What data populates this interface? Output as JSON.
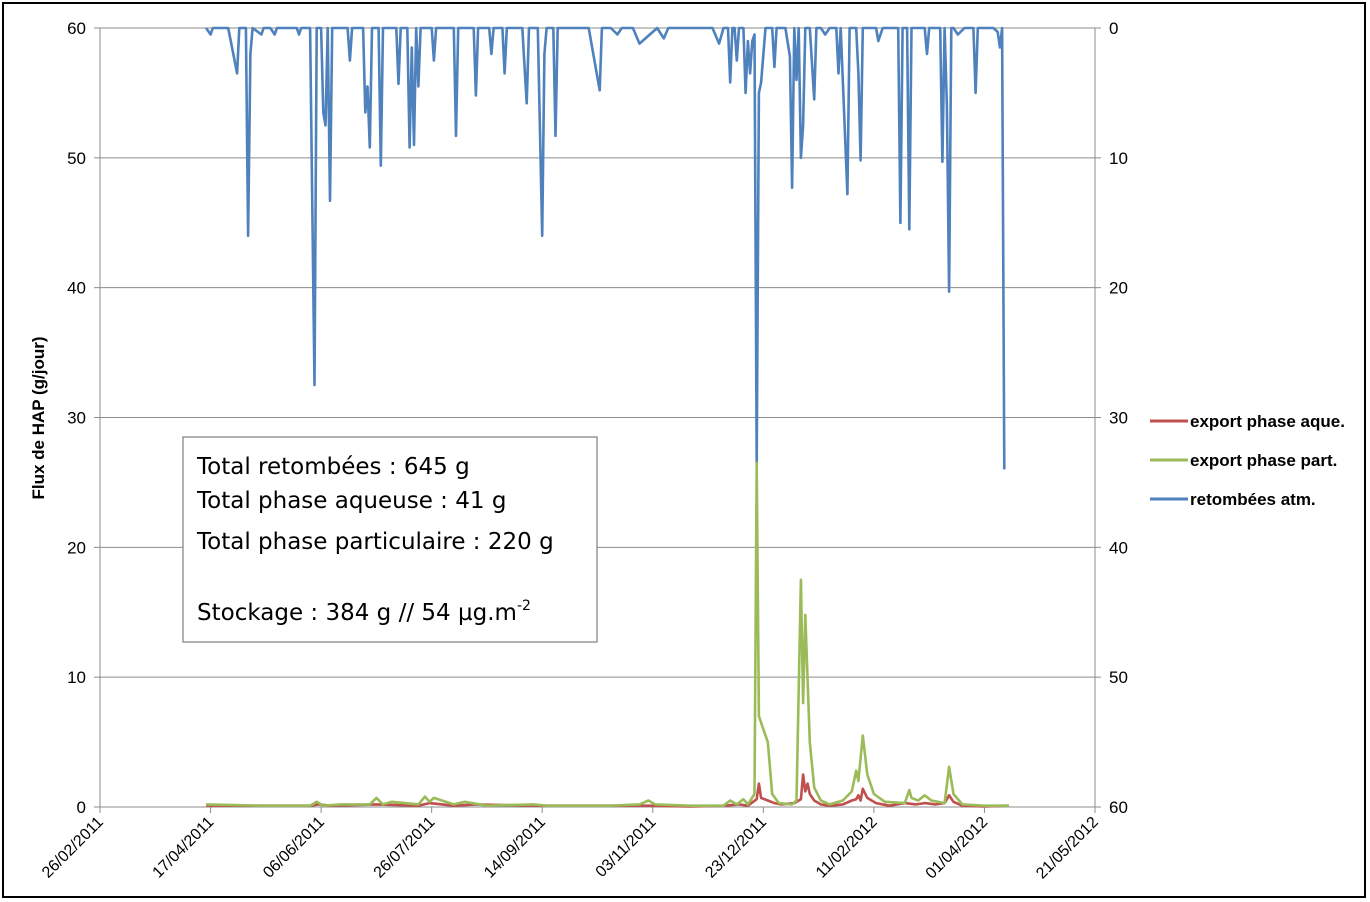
{
  "chart_data": {
    "type": "line",
    "ylabel": "Flux de HAP (g/jour)",
    "xlabel": "",
    "title": "",
    "ylim": [
      0,
      60
    ],
    "y2lim": [
      60,
      0
    ],
    "y_ticks": [
      "0",
      "10",
      "20",
      "30",
      "40",
      "50",
      "60"
    ],
    "y2_ticks": [
      "60",
      "50",
      "40",
      "30",
      "20",
      "10",
      "0"
    ],
    "x_ticks": [
      "26/02/2011",
      "17/04/2011",
      "06/06/2011",
      "26/07/2011",
      "14/09/2011",
      "03/11/2011",
      "23/12/2011",
      "11/02/2012",
      "01/04/2012",
      "21/05/2012"
    ],
    "grid": "horizontal",
    "legend_position": "right",
    "series": [
      {
        "name": "export phase aque.",
        "color": "#c0504d",
        "axis": "left",
        "points": [
          [
            "2011-04-15",
            0.1
          ],
          [
            "2011-05-10",
            0.1
          ],
          [
            "2011-06-01",
            0.1
          ],
          [
            "2011-06-05",
            0.2
          ],
          [
            "2011-06-10",
            0.1
          ],
          [
            "2011-07-01",
            0.2
          ],
          [
            "2011-07-20",
            0.1
          ],
          [
            "2011-07-25",
            0.3
          ],
          [
            "2011-08-05",
            0.1
          ],
          [
            "2011-08-15",
            0.2
          ],
          [
            "2011-09-10",
            0.1
          ],
          [
            "2011-10-15",
            0.1
          ],
          [
            "2011-11-01",
            0.1
          ],
          [
            "2011-11-20",
            0.05
          ],
          [
            "2011-12-05",
            0.1
          ],
          [
            "2011-12-12",
            0.2
          ],
          [
            "2011-12-16",
            0.1
          ],
          [
            "2011-12-20",
            0.6
          ],
          [
            "2011-12-21",
            1.8
          ],
          [
            "2011-12-22",
            0.7
          ],
          [
            "2011-12-25",
            0.5
          ],
          [
            "2011-12-28",
            0.3
          ],
          [
            "2011-12-31",
            0.2
          ],
          [
            "2012-01-06",
            0.3
          ],
          [
            "2012-01-09",
            0.6
          ],
          [
            "2012-01-10",
            2.5
          ],
          [
            "2012-01-11",
            1.2
          ],
          [
            "2012-01-12",
            1.8
          ],
          [
            "2012-01-13",
            1.0
          ],
          [
            "2012-01-15",
            0.5
          ],
          [
            "2012-01-18",
            0.2
          ],
          [
            "2012-01-22",
            0.1
          ],
          [
            "2012-01-28",
            0.2
          ],
          [
            "2012-02-01",
            0.5
          ],
          [
            "2012-02-03",
            0.6
          ],
          [
            "2012-02-04",
            0.9
          ],
          [
            "2012-02-05",
            0.5
          ],
          [
            "2012-02-06",
            1.4
          ],
          [
            "2012-02-08",
            0.7
          ],
          [
            "2012-02-12",
            0.3
          ],
          [
            "2012-02-18",
            0.1
          ],
          [
            "2012-02-25",
            0.3
          ],
          [
            "2012-03-01",
            0.2
          ],
          [
            "2012-03-05",
            0.3
          ],
          [
            "2012-03-10",
            0.2
          ],
          [
            "2012-03-14",
            0.3
          ],
          [
            "2012-03-16",
            0.9
          ],
          [
            "2012-03-18",
            0.4
          ],
          [
            "2012-03-22",
            0.1
          ],
          [
            "2012-04-01",
            0.05
          ],
          [
            "2012-04-10",
            0.1
          ],
          [
            "2012-04-12",
            0.1
          ]
        ]
      },
      {
        "name": "export phase part.",
        "color": "#9bbb59",
        "axis": "left",
        "points": [
          [
            "2011-04-15",
            0.2
          ],
          [
            "2011-05-10",
            0.1
          ],
          [
            "2011-06-01",
            0.1
          ],
          [
            "2011-06-04",
            0.4
          ],
          [
            "2011-06-07",
            0.1
          ],
          [
            "2011-06-15",
            0.2
          ],
          [
            "2011-06-28",
            0.2
          ],
          [
            "2011-07-01",
            0.7
          ],
          [
            "2011-07-04",
            0.2
          ],
          [
            "2011-07-08",
            0.4
          ],
          [
            "2011-07-20",
            0.2
          ],
          [
            "2011-07-23",
            0.8
          ],
          [
            "2011-07-25",
            0.4
          ],
          [
            "2011-07-27",
            0.7
          ],
          [
            "2011-08-05",
            0.2
          ],
          [
            "2011-08-10",
            0.4
          ],
          [
            "2011-08-20",
            0.1
          ],
          [
            "2011-09-10",
            0.2
          ],
          [
            "2011-09-16",
            0.1
          ],
          [
            "2011-10-15",
            0.1
          ],
          [
            "2011-10-28",
            0.2
          ],
          [
            "2011-11-01",
            0.5
          ],
          [
            "2011-11-04",
            0.2
          ],
          [
            "2011-11-20",
            0.1
          ],
          [
            "2011-12-05",
            0.1
          ],
          [
            "2011-12-08",
            0.5
          ],
          [
            "2011-12-11",
            0.2
          ],
          [
            "2011-12-14",
            0.6
          ],
          [
            "2011-12-16",
            0.2
          ],
          [
            "2011-12-19",
            1.0
          ],
          [
            "2011-12-20",
            26.5
          ],
          [
            "2011-12-21",
            7.0
          ],
          [
            "2011-12-23",
            6.0
          ],
          [
            "2011-12-25",
            5.0
          ],
          [
            "2011-12-27",
            1.0
          ],
          [
            "2011-12-30",
            0.3
          ],
          [
            "2012-01-05",
            0.2
          ],
          [
            "2012-01-07",
            0.5
          ],
          [
            "2012-01-09",
            17.5
          ],
          [
            "2012-01-10",
            8.0
          ],
          [
            "2012-01-11",
            14.8
          ],
          [
            "2012-01-13",
            5.0
          ],
          [
            "2012-01-15",
            1.5
          ],
          [
            "2012-01-18",
            0.5
          ],
          [
            "2012-01-22",
            0.2
          ],
          [
            "2012-01-28",
            0.5
          ],
          [
            "2012-02-01",
            1.2
          ],
          [
            "2012-02-03",
            2.8
          ],
          [
            "2012-02-04",
            2.0
          ],
          [
            "2012-02-06",
            5.5
          ],
          [
            "2012-02-08",
            2.5
          ],
          [
            "2012-02-11",
            1.0
          ],
          [
            "2012-02-16",
            0.4
          ],
          [
            "2012-02-25",
            0.3
          ],
          [
            "2012-02-27",
            1.3
          ],
          [
            "2012-02-28",
            0.7
          ],
          [
            "2012-03-02",
            0.5
          ],
          [
            "2012-03-05",
            0.9
          ],
          [
            "2012-03-08",
            0.5
          ],
          [
            "2012-03-14",
            0.3
          ],
          [
            "2012-03-16",
            3.1
          ],
          [
            "2012-03-18",
            1.0
          ],
          [
            "2012-03-22",
            0.2
          ],
          [
            "2012-04-01",
            0.1
          ],
          [
            "2012-04-12",
            0.1
          ]
        ]
      },
      {
        "name": "retombées atm.",
        "color": "#4f81bd",
        "axis": "right",
        "points": [
          [
            "2011-04-15",
            0
          ],
          [
            "2011-04-17",
            0.5
          ],
          [
            "2011-04-18",
            0
          ],
          [
            "2011-04-25",
            0
          ],
          [
            "2011-04-29",
            3.5
          ],
          [
            "2011-04-30",
            0
          ],
          [
            "2011-05-03",
            0
          ],
          [
            "2011-05-04",
            16
          ],
          [
            "2011-05-05",
            2
          ],
          [
            "2011-05-06",
            0
          ],
          [
            "2011-05-10",
            0.5
          ],
          [
            "2011-05-11",
            0
          ],
          [
            "2011-05-14",
            0
          ],
          [
            "2011-05-16",
            0.5
          ],
          [
            "2011-05-17",
            0
          ],
          [
            "2011-05-26",
            0
          ],
          [
            "2011-05-27",
            0.5
          ],
          [
            "2011-05-28",
            0
          ],
          [
            "2011-06-01",
            0
          ],
          [
            "2011-06-03",
            27.5
          ],
          [
            "2011-06-04",
            0
          ],
          [
            "2011-06-06",
            0
          ],
          [
            "2011-06-07",
            6.5
          ],
          [
            "2011-06-08",
            7.5
          ],
          [
            "2011-06-09",
            0
          ],
          [
            "2011-06-10",
            13.3
          ],
          [
            "2011-06-11",
            0
          ],
          [
            "2011-06-18",
            0
          ],
          [
            "2011-06-19",
            2.5
          ],
          [
            "2011-06-20",
            0
          ],
          [
            "2011-06-25",
            0
          ],
          [
            "2011-06-26",
            6.5
          ],
          [
            "2011-06-27",
            4.5
          ],
          [
            "2011-06-28",
            9.2
          ],
          [
            "2011-06-29",
            0
          ],
          [
            "2011-07-02",
            0
          ],
          [
            "2011-07-03",
            10.6
          ],
          [
            "2011-07-04",
            0
          ],
          [
            "2011-07-10",
            0
          ],
          [
            "2011-07-11",
            4.3
          ],
          [
            "2011-07-12",
            0
          ],
          [
            "2011-07-15",
            0
          ],
          [
            "2011-07-16",
            9.2
          ],
          [
            "2011-07-17",
            1.5
          ],
          [
            "2011-07-18",
            9.0
          ],
          [
            "2011-07-19",
            0
          ],
          [
            "2011-07-20",
            4.5
          ],
          [
            "2011-07-21",
            0
          ],
          [
            "2011-07-26",
            0
          ],
          [
            "2011-07-27",
            2.5
          ],
          [
            "2011-07-28",
            0
          ],
          [
            "2011-08-05",
            0
          ],
          [
            "2011-08-06",
            8.3
          ],
          [
            "2011-08-07",
            0
          ],
          [
            "2011-08-14",
            0
          ],
          [
            "2011-08-15",
            5.2
          ],
          [
            "2011-08-16",
            0
          ],
          [
            "2011-08-21",
            0
          ],
          [
            "2011-08-22",
            2.0
          ],
          [
            "2011-08-23",
            0
          ],
          [
            "2011-08-27",
            0
          ],
          [
            "2011-08-28",
            3.5
          ],
          [
            "2011-08-29",
            0
          ],
          [
            "2011-09-05",
            0
          ],
          [
            "2011-09-07",
            5.8
          ],
          [
            "2011-09-08",
            0
          ],
          [
            "2011-09-12",
            0
          ],
          [
            "2011-09-14",
            16
          ],
          [
            "2011-09-15",
            2.0
          ],
          [
            "2011-09-16",
            0
          ],
          [
            "2011-09-19",
            0
          ],
          [
            "2011-09-20",
            8.3
          ],
          [
            "2011-09-21",
            0
          ],
          [
            "2011-10-05",
            0
          ],
          [
            "2011-10-10",
            4.8
          ],
          [
            "2011-10-11",
            0
          ],
          [
            "2011-10-15",
            0
          ],
          [
            "2011-10-18",
            0.5
          ],
          [
            "2011-10-20",
            0
          ],
          [
            "2011-10-25",
            0
          ],
          [
            "2011-10-28",
            1.2
          ],
          [
            "2011-11-05",
            0
          ],
          [
            "2011-11-08",
            0.8
          ],
          [
            "2011-11-10",
            0
          ],
          [
            "2011-11-25",
            0
          ],
          [
            "2011-11-30",
            0
          ],
          [
            "2011-12-03",
            1.2
          ],
          [
            "2011-12-05",
            0
          ],
          [
            "2011-12-07",
            0
          ],
          [
            "2011-12-08",
            4.2
          ],
          [
            "2011-12-09",
            0
          ],
          [
            "2011-12-10",
            0
          ],
          [
            "2011-12-11",
            2.5
          ],
          [
            "2011-12-12",
            0
          ],
          [
            "2011-12-14",
            0
          ],
          [
            "2011-12-15",
            5.0
          ],
          [
            "2011-12-16",
            1.0
          ],
          [
            "2011-12-17",
            3.5
          ],
          [
            "2011-12-18",
            1.0
          ],
          [
            "2011-12-19",
            0.5
          ],
          [
            "2011-12-20",
            33.5
          ],
          [
            "2011-12-21",
            5.0
          ],
          [
            "2011-12-22",
            4.2
          ],
          [
            "2011-12-24",
            0
          ],
          [
            "2011-12-27",
            0
          ],
          [
            "2011-12-28",
            3.0
          ],
          [
            "2011-12-29",
            0
          ],
          [
            "2012-01-02",
            0
          ],
          [
            "2012-01-04",
            2.2
          ],
          [
            "2012-01-05",
            12.3
          ],
          [
            "2012-01-06",
            0
          ],
          [
            "2012-01-07",
            4.0
          ],
          [
            "2012-01-08",
            0
          ],
          [
            "2012-01-09",
            10
          ],
          [
            "2012-01-10",
            7.5
          ],
          [
            "2012-01-11",
            0
          ],
          [
            "2012-01-13",
            0
          ],
          [
            "2012-01-15",
            5.5
          ],
          [
            "2012-01-16",
            0
          ],
          [
            "2012-01-18",
            0
          ],
          [
            "2012-01-20",
            0.5
          ],
          [
            "2012-01-22",
            0
          ],
          [
            "2012-01-25",
            0
          ],
          [
            "2012-01-26",
            3.5
          ],
          [
            "2012-01-27",
            0
          ],
          [
            "2012-01-30",
            12.8
          ],
          [
            "2012-01-31",
            0
          ],
          [
            "2012-02-03",
            0
          ],
          [
            "2012-02-04",
            3.5
          ],
          [
            "2012-02-05",
            10.2
          ],
          [
            "2012-02-06",
            0
          ],
          [
            "2012-02-12",
            0
          ],
          [
            "2012-02-13",
            1.0
          ],
          [
            "2012-02-15",
            0
          ],
          [
            "2012-02-22",
            0
          ],
          [
            "2012-02-23",
            15.0
          ],
          [
            "2012-02-24",
            0
          ],
          [
            "2012-02-26",
            0
          ],
          [
            "2012-02-27",
            15.5
          ],
          [
            "2012-02-28",
            0
          ],
          [
            "2012-03-05",
            0
          ],
          [
            "2012-03-06",
            2.0
          ],
          [
            "2012-03-07",
            0
          ],
          [
            "2012-03-12",
            0
          ],
          [
            "2012-03-13",
            10.3
          ],
          [
            "2012-03-14",
            0
          ],
          [
            "2012-03-15",
            6.0
          ],
          [
            "2012-03-16",
            20.3
          ],
          [
            "2012-03-17",
            0
          ],
          [
            "2012-03-18",
            0
          ],
          [
            "2012-03-20",
            0.5
          ],
          [
            "2012-03-23",
            0
          ],
          [
            "2012-03-27",
            0
          ],
          [
            "2012-03-28",
            5.0
          ],
          [
            "2012-03-29",
            0
          ],
          [
            "2012-04-05",
            0
          ],
          [
            "2012-04-07",
            0.3
          ],
          [
            "2012-04-08",
            1.5
          ],
          [
            "2012-04-09",
            0.0
          ],
          [
            "2012-04-10",
            34
          ]
        ]
      }
    ],
    "annotation": {
      "lines": [
        "Total retombées : 645 g",
        "Total phase aqueuse : 41 g",
        "Total phase particulaire : 220 g",
        "",
        "Stockage : 384 g // 54 µg.m"
      ],
      "superscript": "-2"
    }
  }
}
